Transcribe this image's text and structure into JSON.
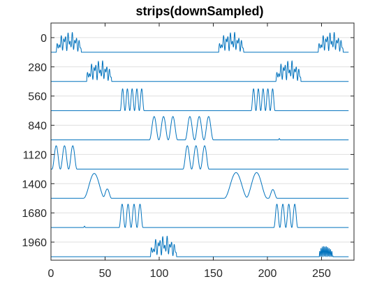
{
  "chart_data": {
    "type": "line",
    "title": "strips(downSampled)",
    "xlabel": "",
    "ylabel": "",
    "xlim": [
      0,
      280
    ],
    "x_ticks": [
      0,
      50,
      100,
      150,
      200,
      250
    ],
    "y_ticks": [
      0,
      280,
      560,
      840,
      1120,
      1400,
      1680,
      1960
    ],
    "y_direction": "reverse",
    "y_ticks_gridlines": true,
    "line_color": "#0072BD",
    "grid_color": "#dfdfdf",
    "strip_count": 8,
    "strip_spacing": 280,
    "x_end": 275,
    "strips": [
      {
        "offset": 0,
        "bursts": [
          {
            "shape": "dense",
            "start": 5,
            "end": 28,
            "amp": 0.75
          },
          {
            "shape": "dense",
            "start": 155,
            "end": 178,
            "amp": 0.75
          },
          {
            "shape": "dense",
            "start": 247,
            "end": 270,
            "amp": 0.75
          }
        ],
        "spikes": []
      },
      {
        "offset": 280,
        "bursts": [
          {
            "shape": "dense",
            "start": 33,
            "end": 56,
            "amp": 0.78
          },
          {
            "shape": "dense",
            "start": 208,
            "end": 231,
            "amp": 0.78
          }
        ],
        "spikes": []
      },
      {
        "offset": 560,
        "bursts": [
          {
            "shape": "sine",
            "start": 64,
            "end": 86,
            "amp": 0.75,
            "cycles": 5
          },
          {
            "shape": "sine",
            "start": 185,
            "end": 207,
            "amp": 0.75,
            "cycles": 5
          }
        ],
        "spikes": []
      },
      {
        "offset": 840,
        "bursts": [
          {
            "shape": "sine",
            "start": 91,
            "end": 117,
            "amp": 0.8,
            "cycles": 3
          },
          {
            "shape": "sine",
            "start": 124,
            "end": 150,
            "amp": 0.8,
            "cycles": 3
          }
        ],
        "spikes": [
          {
            "x": 211,
            "amp": 0.05
          }
        ]
      },
      {
        "offset": 1120,
        "bursts": [
          {
            "shape": "sine",
            "start": 1,
            "end": 24,
            "amp": 0.8,
            "cycles": 3
          },
          {
            "shape": "sine",
            "start": 122,
            "end": 146,
            "amp": 0.8,
            "cycles": 3
          }
        ],
        "spikes": []
      },
      {
        "offset": 1400,
        "bursts": [
          {
            "shape": "sine",
            "start": 30,
            "end": 50,
            "amp": 0.85,
            "cycles": 1
          },
          {
            "shape": "sine",
            "start": 48,
            "end": 56,
            "amp": 0.32,
            "cycles": 1
          },
          {
            "shape": "sine",
            "start": 160,
            "end": 182,
            "amp": 0.88,
            "cycles": 1
          },
          {
            "shape": "sine",
            "start": 180,
            "end": 200,
            "amp": 0.88,
            "cycles": 1
          },
          {
            "shape": "sine",
            "start": 201,
            "end": 209,
            "amp": 0.3,
            "cycles": 1
          }
        ],
        "spikes": []
      },
      {
        "offset": 1680,
        "bursts": [
          {
            "shape": "sine",
            "start": 63,
            "end": 85,
            "amp": 0.8,
            "cycles": 4
          },
          {
            "shape": "sine",
            "start": 206,
            "end": 228,
            "amp": 0.8,
            "cycles": 4
          }
        ],
        "spikes": [
          {
            "x": 31,
            "amp": 0.05
          }
        ]
      },
      {
        "offset": 1960,
        "bursts": [
          {
            "shape": "dense",
            "start": 92,
            "end": 116,
            "amp": 0.78
          },
          {
            "shape": "decay",
            "start": 248,
            "end": 268,
            "amp": 0.42
          }
        ],
        "spikes": []
      }
    ]
  }
}
